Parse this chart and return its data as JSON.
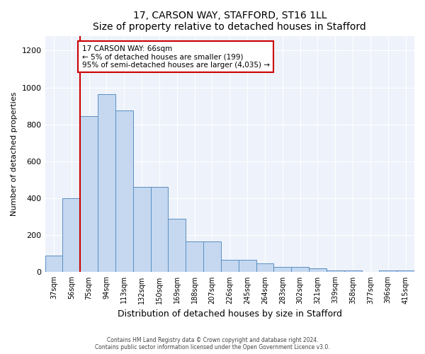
{
  "title1": "17, CARSON WAY, STAFFORD, ST16 1LL",
  "title2": "Size of property relative to detached houses in Stafford",
  "xlabel": "Distribution of detached houses by size in Stafford",
  "ylabel": "Number of detached properties",
  "bar_labels": [
    "37sqm",
    "56sqm",
    "75sqm",
    "94sqm",
    "113sqm",
    "132sqm",
    "150sqm",
    "169sqm",
    "188sqm",
    "207sqm",
    "226sqm",
    "245sqm",
    "264sqm",
    "283sqm",
    "302sqm",
    "321sqm",
    "339sqm",
    "358sqm",
    "377sqm",
    "396sqm",
    "415sqm"
  ],
  "bar_heights": [
    90,
    400,
    845,
    965,
    875,
    460,
    460,
    290,
    165,
    165,
    68,
    68,
    48,
    30,
    30,
    20,
    10,
    10,
    0,
    10,
    10
  ],
  "bar_color": "#c5d8f0",
  "bar_edge_color": "#5a8fc2",
  "red_line_x": 1.5,
  "annotation_text": "17 CARSON WAY: 66sqm\n← 5% of detached houses are smaller (199)\n95% of semi-detached houses are larger (4,035) →",
  "annotation_box_color": "#ffffff",
  "annotation_box_edge_color": "#cc0000",
  "red_line_color": "#cc0000",
  "ylim": [
    0,
    1280
  ],
  "yticks": [
    0,
    200,
    400,
    600,
    800,
    1000,
    1200
  ],
  "footer1": "Contains HM Land Registry data © Crown copyright and database right 2024.",
  "footer2": "Contains public sector information licensed under the Open Government Licence v3.0.",
  "bg_color": "#ffffff",
  "plot_bg_color": "#eef2fa",
  "grid_color": "#ffffff"
}
